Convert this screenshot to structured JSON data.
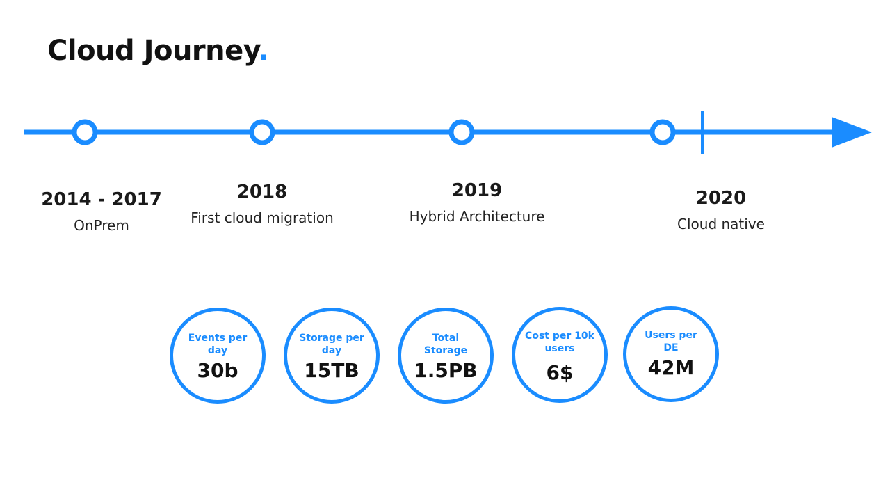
{
  "title": {
    "text": "Cloud Journey",
    "dot": "."
  },
  "accent_color": "#1a8cff",
  "timeline": {
    "milestones": [
      {
        "year": "2014 - 2017",
        "label": "OnPrem"
      },
      {
        "year": "2018",
        "label": "First cloud migration"
      },
      {
        "year": "2019",
        "label": "Hybrid Architecture"
      },
      {
        "year": "2020",
        "label": "Cloud native"
      }
    ]
  },
  "stats": [
    {
      "label": "Events per day",
      "value": "30b"
    },
    {
      "label": "Storage per day",
      "value": "15TB"
    },
    {
      "label": "Total Storage",
      "value": "1.5PB"
    },
    {
      "label": "Cost per 10k users",
      "value": "6$"
    },
    {
      "label": "Users per DE",
      "value": "42M"
    }
  ]
}
